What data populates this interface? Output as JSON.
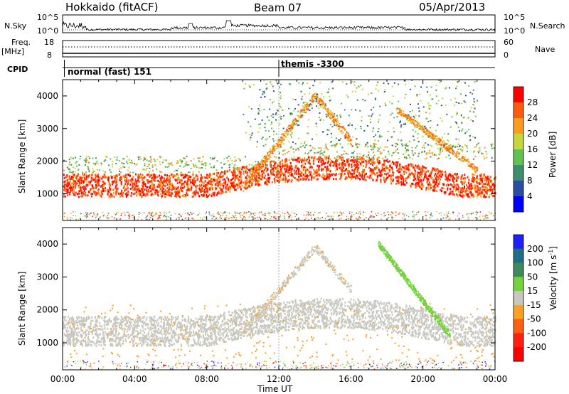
{
  "header": {
    "station": "Hokkaido (fitACF)",
    "beam": "Beam 07",
    "date": "05/Apr/2013"
  },
  "top_panels": {
    "nsky_label": "N.Sky",
    "nsky_ticks": [
      "10^5",
      "10^0"
    ],
    "nsearch_label": "N.Search",
    "nsearch_ticks": [
      "10^5",
      "10^0"
    ],
    "freq_label": "Freq.",
    "freq_unit": "[MHz]",
    "freq_ticks": [
      "18",
      "8"
    ],
    "nave_label": "Nave",
    "nave_ticks": [
      "60",
      "0"
    ],
    "cpid_label": "CPID",
    "cpid_modes": [
      "normal (fast) 151",
      "themis -3300"
    ]
  },
  "chart_data": [
    {
      "type": "heatmap",
      "parameter": "Power",
      "ylabel": "Slant Range [km]",
      "yticks": [
        1000,
        2000,
        3000,
        4000
      ],
      "ylim": [
        180,
        4500
      ],
      "xlim": [
        0,
        24
      ],
      "colorbar": {
        "label": "Power [dB]",
        "ticks": [
          "4",
          "8",
          "12",
          "16",
          "20",
          "24",
          "28"
        ],
        "colors": [
          "#0000ff",
          "#2a4ea0",
          "#3d8f6b",
          "#63c24f",
          "#c7d63a",
          "#ff9b1e",
          "#ff5a10",
          "#ff0000"
        ]
      },
      "features": [
        {
          "name": "main-scatter-band",
          "hours": [
            0,
            24
          ],
          "range_km": [
            900,
            1900
          ],
          "power_db": 28
        },
        {
          "name": "arc-14UT",
          "hours": [
            11,
            16
          ],
          "range_km": [
            1900,
            4100
          ],
          "power_db": 18
        },
        {
          "name": "arc-20UT",
          "hours": [
            18.5,
            23
          ],
          "range_km": [
            1800,
            3600
          ],
          "power_db": 18
        }
      ]
    },
    {
      "type": "heatmap",
      "parameter": "Velocity",
      "ylabel": "Slant Range [km]",
      "yticks": [
        1000,
        2000,
        3000,
        4000
      ],
      "ylim": [
        180,
        4500
      ],
      "xlim": [
        0,
        24
      ],
      "colorbar": {
        "label": "Velocity [m s-1]",
        "ticks": [
          "200",
          "100",
          "50",
          "15",
          "-15",
          "-50",
          "-100",
          "-200"
        ],
        "colors": [
          "#2020ff",
          "#1f6f8b",
          "#3f8a5a",
          "#72d33a",
          "#c8c8c0",
          "#ffa020",
          "#ff6010",
          "#ff2010",
          "#ff0000"
        ]
      },
      "features": [
        {
          "name": "ground-scatter",
          "hours": [
            0,
            24
          ],
          "range_km": [
            900,
            2200
          ],
          "velocity": 0
        },
        {
          "name": "green-streak",
          "hours": [
            17.5,
            21.5
          ],
          "range_km": [
            1000,
            4000
          ],
          "velocity": 50
        },
        {
          "name": "orange-arc-14UT",
          "hours": [
            13,
            15
          ],
          "range_km": [
            3000,
            4000
          ],
          "velocity": -50
        }
      ]
    }
  ],
  "xaxis": {
    "ticks": [
      "00:00",
      "04:00",
      "08:00",
      "12:00",
      "16:00",
      "20:00",
      "00:00"
    ],
    "label": "Time UT"
  }
}
